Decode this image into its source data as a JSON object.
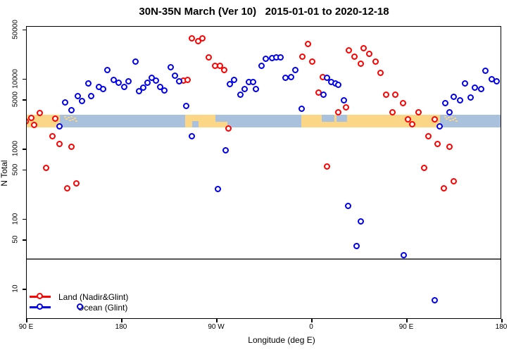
{
  "title": "30N-35N March (Ver 10)   2015-01-01 to 2020-12-18",
  "legend": {
    "items": [
      {
        "label": "Land (Nadir&Glint)",
        "color": "#ff0000"
      },
      {
        "label": "Ocean (Glint)",
        "color": "#0000ee"
      }
    ]
  },
  "chart_data": {
    "type": "scatter",
    "title": "30N-35N March (Ver 10)   2015-01-01 to 2020-12-18",
    "xlabel": "Longitude (deg E)",
    "ylabel": "N Total",
    "y_scale": "log",
    "y_ticks": [
      50000,
      10000,
      5000,
      1000,
      500,
      100,
      50,
      10
    ],
    "y_range_approx": [
      3.7,
      56000
    ],
    "x_axis_note": "longitude axis starts at 90E and wraps eastward through 180, 90W, 0, 90E to 180 (450 deg total); x values below are unwrapped deg E (90..540)",
    "x_ticks": [
      {
        "lon": 90,
        "label": "90 E"
      },
      {
        "lon": 180,
        "label": "180"
      },
      {
        "lon": 270,
        "label": "90 W"
      },
      {
        "lon": 360,
        "label": "0"
      },
      {
        "lon": 450,
        "label": "90 E"
      },
      {
        "lon": 540,
        "label": "180"
      }
    ],
    "threshold_line": {
      "value": 27,
      "color": "#555555"
    },
    "land_ocean_strip": {
      "value_range": [
        2000,
        3050
      ],
      "ocean_color": "#aac1dd",
      "land_color": "#fbd687",
      "land_segments_lon": [
        [
          90,
          122
        ],
        [
          240.5,
          280.5
        ],
        [
          350.5,
          482
        ]
      ],
      "ocean_notches_top_lon": [
        [
          269,
          280.5
        ],
        [
          370,
          382
        ],
        [
          384,
          394
        ]
      ],
      "ocean_notches_bottom_lon": [
        [
          247,
          253
        ]
      ],
      "island_speckle_zones_lon": [
        [
          126,
          138
        ],
        [
          486,
          498
        ]
      ]
    },
    "series": [
      {
        "name": "Land (Nadir&Glint)",
        "color": "#ff0000",
        "points": [
          [
            103,
            3200
          ],
          [
            95,
            2700
          ],
          [
            90,
            2400
          ],
          [
            98,
            2150
          ],
          [
            118,
            2650
          ],
          [
            115,
            1480
          ],
          [
            122,
            1150
          ],
          [
            133,
            1050
          ],
          [
            109,
            520
          ],
          [
            138,
            315
          ],
          [
            129,
            270
          ],
          [
            239,
            9200
          ],
          [
            243,
            9400
          ],
          [
            247,
            37000
          ],
          [
            253,
            33500
          ],
          [
            257,
            37000
          ],
          [
            263,
            19800
          ],
          [
            269,
            15000
          ],
          [
            274,
            15000
          ],
          [
            278,
            13100
          ],
          [
            282,
            1900
          ],
          [
            352,
            20300
          ],
          [
            357,
            31000
          ],
          [
            361,
            17200
          ],
          [
            367,
            6200
          ],
          [
            371,
            10400
          ],
          [
            375,
            550
          ],
          [
            386,
            3260
          ],
          [
            393,
            3830
          ],
          [
            396,
            25000
          ],
          [
            401,
            20300
          ],
          [
            407,
            16100
          ],
          [
            410,
            26700
          ],
          [
            415,
            22200
          ],
          [
            421,
            17200
          ],
          [
            426,
            11900
          ],
          [
            431,
            5900
          ],
          [
            437,
            3260
          ],
          [
            440,
            5800
          ],
          [
            447,
            4400
          ],
          [
            452,
            2600
          ],
          [
            456,
            2200
          ],
          [
            462,
            3260
          ],
          [
            467,
            520
          ],
          [
            471,
            1480
          ],
          [
            477,
            2600
          ],
          [
            480,
            1150
          ],
          [
            486,
            270
          ],
          [
            491,
            1050
          ],
          [
            495,
            340
          ]
        ]
      },
      {
        "name": "Ocean (Glint)",
        "color": "#0000ee",
        "points": [
          [
            122,
            2050
          ],
          [
            127,
            4550
          ],
          [
            133,
            3500
          ],
          [
            139,
            5550
          ],
          [
            143,
            4700
          ],
          [
            149,
            8400
          ],
          [
            152,
            5600
          ],
          [
            159,
            7500
          ],
          [
            163,
            7000
          ],
          [
            167,
            13000
          ],
          [
            173,
            9400
          ],
          [
            178,
            8600
          ],
          [
            183,
            7500
          ],
          [
            187,
            9000
          ],
          [
            194,
            17200
          ],
          [
            197,
            6500
          ],
          [
            201,
            7300
          ],
          [
            205,
            8600
          ],
          [
            209,
            10100
          ],
          [
            213,
            9200
          ],
          [
            217,
            7500
          ],
          [
            221,
            6700
          ],
          [
            227,
            14300
          ],
          [
            231,
            10900
          ],
          [
            235,
            9000
          ],
          [
            242,
            4000
          ],
          [
            247,
            1480
          ],
          [
            272,
            260
          ],
          [
            279,
            930
          ],
          [
            283,
            8200
          ],
          [
            287,
            9400
          ],
          [
            293,
            5900
          ],
          [
            297,
            7000
          ],
          [
            301,
            8800
          ],
          [
            305,
            8800
          ],
          [
            308,
            7000
          ],
          [
            313,
            15000
          ],
          [
            317,
            18900
          ],
          [
            323,
            19300
          ],
          [
            327,
            19800
          ],
          [
            331,
            19800
          ],
          [
            336,
            10100
          ],
          [
            341,
            10300
          ],
          [
            345,
            13100
          ],
          [
            351,
            3660
          ],
          [
            372,
            5900
          ],
          [
            375,
            10100
          ],
          [
            379,
            8800
          ],
          [
            383,
            8400
          ],
          [
            386,
            8000
          ],
          [
            391,
            4900
          ],
          [
            395,
            150
          ],
          [
            403,
            40
          ],
          [
            407,
            90
          ],
          [
            448,
            30
          ],
          [
            482,
            2050
          ],
          [
            487,
            4400
          ],
          [
            491,
            3300
          ],
          [
            495,
            5500
          ],
          [
            501,
            4800
          ],
          [
            506,
            8400
          ],
          [
            511,
            5300
          ],
          [
            515,
            7300
          ],
          [
            521,
            7000
          ],
          [
            525,
            12900
          ],
          [
            531,
            9700
          ],
          [
            536,
            9100
          ],
          [
            477,
            6.8
          ],
          [
            141.3,
            5.5
          ]
        ]
      }
    ]
  }
}
